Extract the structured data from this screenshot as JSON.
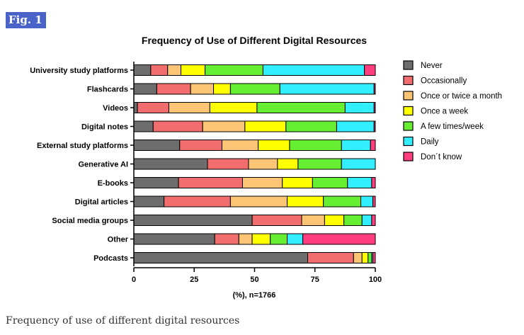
{
  "figure": {
    "label": "Fig. 1",
    "caption": "Frequency of use of different digital resources"
  },
  "chart_data": {
    "type": "bar",
    "orientation": "horizontal",
    "stacked": true,
    "title": "Frequency of Use of Different Digital Resources",
    "xlabel": "(%), n=1766",
    "ylabel": "",
    "xlim": [
      0,
      100
    ],
    "xticks": [
      "0",
      "25",
      "50",
      "75",
      "100"
    ],
    "legend_position": "right",
    "categories": [
      "University study platforms",
      "Flashcards",
      "Videos",
      "Digital notes",
      "External study platforms",
      "Generative AI",
      "E-books",
      "Digital articles",
      "Social media groups",
      "Other",
      "Podcasts"
    ],
    "series": [
      {
        "name": "Never",
        "color": "#6d6d6d",
        "values": [
          7,
          9.5,
          1.5,
          8,
          19,
          30.5,
          18.5,
          12.5,
          49,
          33.5,
          72
        ]
      },
      {
        "name": "Occasionally",
        "color": "#f26d6d",
        "values": [
          7,
          14,
          13,
          20.5,
          17.5,
          17,
          26.5,
          27.5,
          20.5,
          10,
          19
        ]
      },
      {
        "name": "Once or twice a month",
        "color": "#fcc575",
        "values": [
          5.5,
          9.5,
          17,
          17.5,
          15,
          12,
          16.5,
          23.5,
          9.5,
          5.5,
          3.5
        ]
      },
      {
        "name": "Once a week",
        "color": "#ffff00",
        "values": [
          10,
          7,
          19.5,
          17,
          13,
          8.5,
          12.5,
          15,
          8,
          7.5,
          2.5
        ]
      },
      {
        "name": "A few times/week",
        "color": "#66ee33",
        "values": [
          24,
          20.5,
          36.5,
          21,
          21.5,
          18,
          14.5,
          15.5,
          7.5,
          7,
          1.5
        ]
      },
      {
        "name": "Daily",
        "color": "#33eeff",
        "values": [
          42,
          39,
          12,
          15.5,
          12,
          14,
          10,
          5,
          4,
          6.5,
          0.5
        ]
      },
      {
        "name": "Don´t know",
        "color": "#ff3d7f",
        "values": [
          4.5,
          0.5,
          0.5,
          0.5,
          2,
          0,
          1.5,
          1,
          1.5,
          30,
          1
        ]
      }
    ]
  }
}
